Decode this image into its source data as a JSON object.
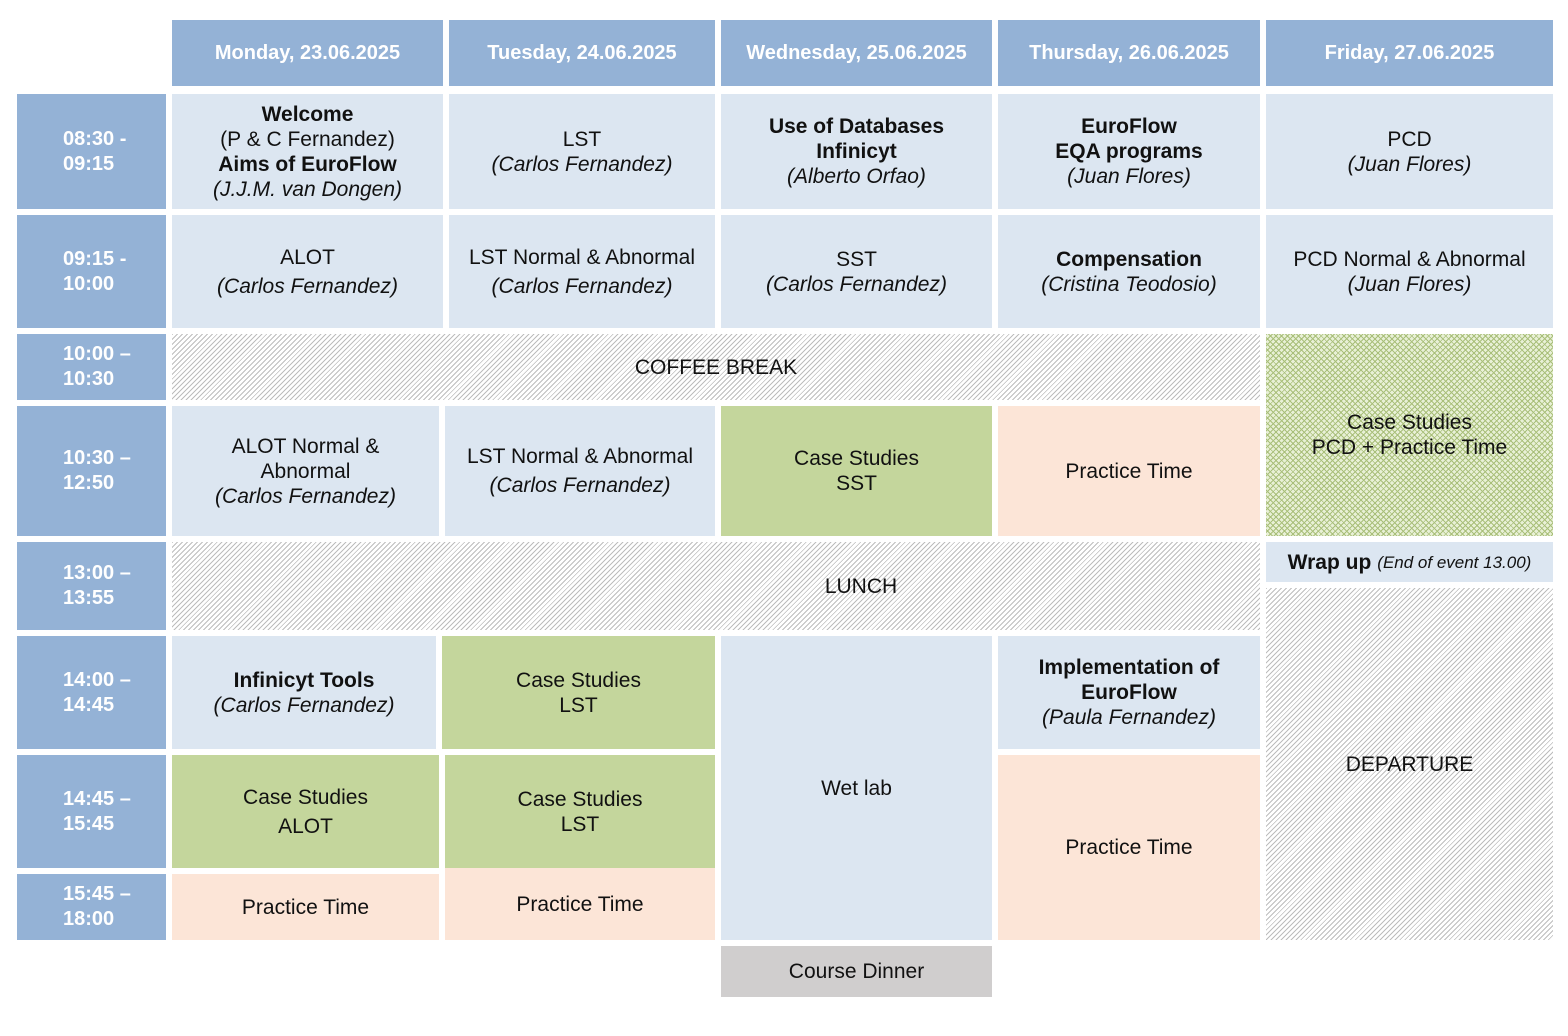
{
  "days": [
    "Monday, 23.06.2025",
    "Tuesday, 24.06.2025",
    "Wednesday, 25.06.2025",
    "Thursday, 26.06.2025",
    "Friday, 27.06.2025"
  ],
  "times": [
    [
      "08:30 -",
      "09:15"
    ],
    [
      "09:15 -",
      "10:00"
    ],
    [
      "10:00 –",
      "10:30"
    ],
    [
      "10:30 –",
      "12:50"
    ],
    [
      "13:00 –",
      "13:55"
    ],
    [
      "14:00 –",
      "14:45"
    ],
    [
      "14:45 –",
      "15:45"
    ],
    [
      "15:45 –",
      "18:00"
    ]
  ],
  "sessions": {
    "mon_0830": {
      "title1": "Welcome",
      "speaker1": "(P & C Fernandez)",
      "title2": "Aims of EuroFlow",
      "speaker2": "(J.J.M. van Dongen)"
    },
    "tue_0830": {
      "title": "LST",
      "speaker": "(Carlos Fernandez)"
    },
    "wed_0830": {
      "title1": "Use of Databases",
      "title2": "Infinicyt",
      "speaker": "(Alberto Orfao)"
    },
    "thu_0830": {
      "title1": "EuroFlow",
      "title2": "EQA programs",
      "speaker": "(Juan Flores)"
    },
    "fri_0830": {
      "title": "PCD",
      "speaker": "(Juan Flores)"
    },
    "mon_0915": {
      "title": "ALOT",
      "speaker": "(Carlos Fernandez)"
    },
    "tue_0915": {
      "title": "LST Normal & Abnormal",
      "speaker": "(Carlos Fernandez)"
    },
    "wed_0915": {
      "title": "SST",
      "speaker": "(Carlos Fernandez)"
    },
    "thu_0915": {
      "title": "Compensation",
      "speaker": "(Cristina Teodosio)"
    },
    "fri_0915": {
      "title": "PCD Normal & Abnormal",
      "speaker": "(Juan Flores)"
    },
    "coffee_break": "COFFEE BREAK",
    "fri_1000": {
      "line1": "Case Studies",
      "line2": "PCD + Practice Time"
    },
    "mon_1030": {
      "line1": "ALOT Normal &",
      "line2": "Abnormal",
      "speaker": "(Carlos Fernandez)"
    },
    "tue_1030": {
      "title": "LST Normal & Abnormal",
      "speaker": "(Carlos Fernandez)"
    },
    "wed_1030": {
      "line1": "Case Studies",
      "line2": "SST"
    },
    "thu_1030": "Practice Time",
    "lunch": "LUNCH",
    "fri_wrap": {
      "title": "Wrap up",
      "note": "(End of event 13.00)"
    },
    "fri_departure": "DEPARTURE",
    "mon_1400": {
      "title": "Infinicyt Tools",
      "speaker": "(Carlos Fernandez)"
    },
    "tue_1400": {
      "line1": "Case Studies",
      "line2": "LST"
    },
    "wed_wetlab": "Wet lab",
    "thu_1400": {
      "title1": "Implementation of",
      "title2": "EuroFlow",
      "speaker": "(Paula Fernandez)"
    },
    "mon_1445": {
      "line1": "Case Studies",
      "line2": "ALOT"
    },
    "tue_1445": {
      "line1": "Case Studies",
      "line2": "LST"
    },
    "thu_1445": "Practice Time",
    "mon_1545": "Practice Time",
    "tue_1545": "Practice Time",
    "course_dinner": "Course Dinner"
  },
  "colors": {
    "header": "#94b2d6",
    "session": "#dce6f1",
    "case_studies": "#c4d69c",
    "practice": "#fce5d7",
    "dinner": "#d0cece"
  }
}
